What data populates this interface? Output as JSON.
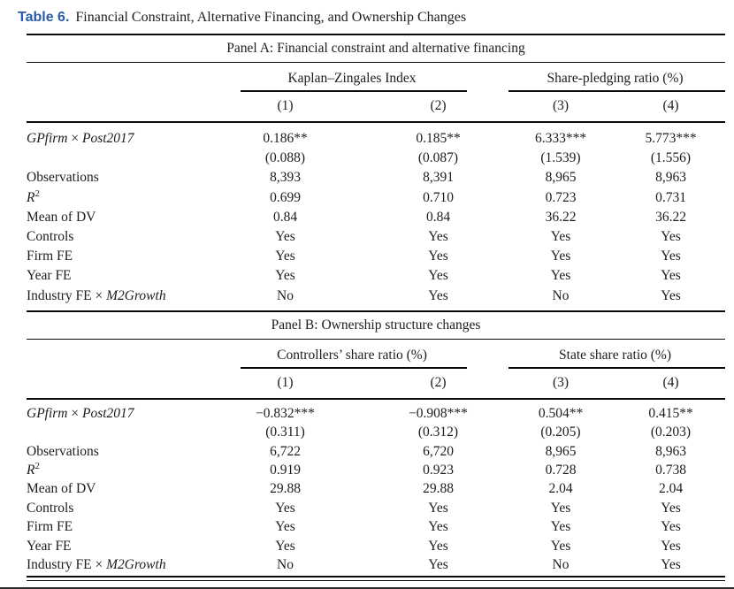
{
  "colors": {
    "accent_blue": "#2b5aa8",
    "text": "#1d1d1f",
    "rule": "#0a0a0a"
  },
  "title": {
    "label": "Table 6.",
    "caption": "Financial Constraint, Alternative Financing, and Ownership Changes"
  },
  "panels": [
    {
      "heading": "Panel A: Financial constraint and alternative financing",
      "groups": [
        "Kaplan–Zingales Index",
        "Share-pledging ratio (%)"
      ],
      "columns": [
        "(1)",
        "(2)",
        "(3)",
        "(4)"
      ],
      "rows": [
        {
          "label": [
            [
              "GPfirm",
              "i"
            ],
            [
              " × ",
              "n"
            ],
            [
              "Post2017",
              "i"
            ]
          ],
          "values": [
            "0.186**",
            "0.185**",
            "6.333***",
            "5.773***"
          ]
        },
        {
          "label": [],
          "values": [
            "(0.088)",
            "(0.087)",
            "(1.539)",
            "(1.556)"
          ]
        },
        {
          "label": [
            [
              "Observations",
              "n"
            ]
          ],
          "values": [
            "8,393",
            "8,391",
            "8,965",
            "8,963"
          ]
        },
        {
          "label": [
            [
              "R",
              "i"
            ],
            [
              "2",
              "sup"
            ]
          ],
          "values": [
            "0.699",
            "0.710",
            "0.723",
            "0.731"
          ]
        },
        {
          "label": [
            [
              "Mean of DV",
              "n"
            ]
          ],
          "values": [
            "0.84",
            "0.84",
            "36.22",
            "36.22"
          ]
        },
        {
          "label": [
            [
              "Controls",
              "n"
            ]
          ],
          "values": [
            "Yes",
            "Yes",
            "Yes",
            "Yes"
          ]
        },
        {
          "label": [
            [
              "Firm FE",
              "n"
            ]
          ],
          "values": [
            "Yes",
            "Yes",
            "Yes",
            "Yes"
          ]
        },
        {
          "label": [
            [
              "Year FE",
              "n"
            ]
          ],
          "values": [
            "Yes",
            "Yes",
            "Yes",
            "Yes"
          ]
        },
        {
          "label": [
            [
              "Industry FE × ",
              "n"
            ],
            [
              "M2Growth",
              "i"
            ]
          ],
          "values": [
            "No",
            "Yes",
            "No",
            "Yes"
          ]
        }
      ]
    },
    {
      "heading": "Panel B: Ownership structure changes",
      "groups": [
        "Controllers’ share ratio (%)",
        "State share ratio (%)"
      ],
      "columns": [
        "(1)",
        "(2)",
        "(3)",
        "(4)"
      ],
      "rows": [
        {
          "label": [
            [
              "GPfirm",
              "i"
            ],
            [
              " × ",
              "n"
            ],
            [
              "Post2017",
              "i"
            ]
          ],
          "values": [
            "−0.832***",
            "−0.908***",
            "0.504**",
            "0.415**"
          ]
        },
        {
          "label": [],
          "values": [
            "(0.311)",
            "(0.312)",
            "(0.205)",
            "(0.203)"
          ]
        },
        {
          "label": [
            [
              "Observations",
              "n"
            ]
          ],
          "values": [
            "6,722",
            "6,720",
            "8,965",
            "8,963"
          ]
        },
        {
          "label": [
            [
              "R",
              "i"
            ],
            [
              "2",
              "sup"
            ]
          ],
          "values": [
            "0.919",
            "0.923",
            "0.728",
            "0.738"
          ]
        },
        {
          "label": [
            [
              "Mean of DV",
              "n"
            ]
          ],
          "values": [
            "29.88",
            "29.88",
            "2.04",
            "2.04"
          ]
        },
        {
          "label": [
            [
              "Controls",
              "n"
            ]
          ],
          "values": [
            "Yes",
            "Yes",
            "Yes",
            "Yes"
          ]
        },
        {
          "label": [
            [
              "Firm FE",
              "n"
            ]
          ],
          "values": [
            "Yes",
            "Yes",
            "Yes",
            "Yes"
          ]
        },
        {
          "label": [
            [
              "Year FE",
              "n"
            ]
          ],
          "values": [
            "Yes",
            "Yes",
            "Yes",
            "Yes"
          ]
        },
        {
          "label": [
            [
              "Industry FE × ",
              "n"
            ],
            [
              "M2Growth",
              "i"
            ]
          ],
          "values": [
            "No",
            "Yes",
            "No",
            "Yes"
          ]
        }
      ]
    }
  ]
}
